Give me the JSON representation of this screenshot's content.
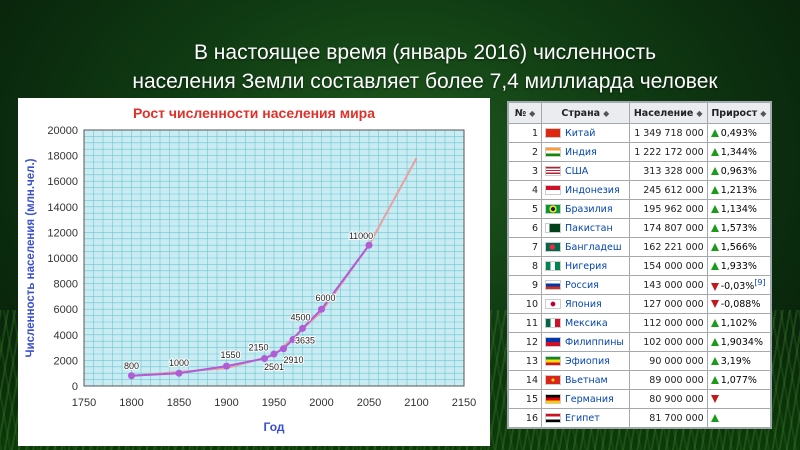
{
  "slide": {
    "title_line1": "В настоящее время (январь 2016) численность",
    "title_line2": "населения Земли составляет более 7,4 миллиарда человек"
  },
  "chart_data": {
    "type": "line",
    "title": "Рост численности населения мира",
    "xlabel": "Год",
    "ylabel": "Численность населения (млн.чел.)",
    "xlim": [
      1750,
      2150
    ],
    "ylim": [
      0,
      20000
    ],
    "x_ticks": [
      1750,
      1800,
      1850,
      1900,
      1950,
      2000,
      2050,
      2100,
      2150
    ],
    "y_ticks": [
      0,
      2000,
      4000,
      6000,
      8000,
      10000,
      12000,
      14000,
      16000,
      18000,
      20000
    ],
    "grid": true,
    "colors": {
      "title": "#e0302a",
      "axis_label": "#3a4fd1",
      "point": "#b05cd6",
      "line": "#b05cd6",
      "trend": "#e8a0a0",
      "plot_bg": "#c8ecf2",
      "grid": "#6fc5d6"
    },
    "series": [
      {
        "points": [
          {
            "x": 1800,
            "y": 800,
            "label": "800"
          },
          {
            "x": 1850,
            "y": 1000,
            "label": "1000"
          },
          {
            "x": 1900,
            "y": 1550,
            "label": "1550"
          },
          {
            "x": 1950,
            "y": 2501,
            "label": "2501"
          },
          {
            "x": 1940,
            "y": 2150,
            "label": "2150"
          },
          {
            "x": 1960,
            "y": 2910,
            "label": "2910"
          },
          {
            "x": 1970,
            "y": 3635,
            "label": "3635"
          },
          {
            "x": 1980,
            "y": 4500,
            "label": "4500"
          },
          {
            "x": 2000,
            "y": 6000,
            "label": "6000"
          },
          {
            "x": 2050,
            "y": 11000,
            "label": "11000"
          }
        ]
      }
    ],
    "trend_line": [
      [
        1800,
        800
      ],
      [
        1900,
        1400
      ],
      [
        1950,
        2400
      ],
      [
        2000,
        5800
      ],
      [
        2050,
        11000
      ],
      [
        2100,
        17800
      ]
    ]
  },
  "table": {
    "headers": [
      "№",
      "Страна",
      "Население",
      "Прирост"
    ],
    "rows": [
      {
        "n": "1",
        "country": "Китай",
        "pop": "1 349 718 000",
        "growth": "0,493%",
        "dir": "up",
        "flag": "cn"
      },
      {
        "n": "2",
        "country": "Индия",
        "pop": "1 222 172 000",
        "growth": "1,344%",
        "dir": "up",
        "flag": "in"
      },
      {
        "n": "3",
        "country": "США",
        "pop": "313 328 000",
        "growth": "0,963%",
        "dir": "up",
        "flag": "us"
      },
      {
        "n": "4",
        "country": "Индонезия",
        "pop": "245 612 000",
        "growth": "1,213%",
        "dir": "up",
        "flag": "id"
      },
      {
        "n": "5",
        "country": "Бразилия",
        "pop": "195 962 000",
        "growth": "1,134%",
        "dir": "up",
        "flag": "br"
      },
      {
        "n": "6",
        "country": "Пакистан",
        "pop": "174 807 000",
        "growth": "1,573%",
        "dir": "up",
        "flag": "pk"
      },
      {
        "n": "7",
        "country": "Бангладеш",
        "pop": "162 221 000",
        "growth": "1,566%",
        "dir": "up",
        "flag": "bd"
      },
      {
        "n": "8",
        "country": "Нигерия",
        "pop": "154 000 000",
        "growth": "1,933%",
        "dir": "up",
        "flag": "ng"
      },
      {
        "n": "9",
        "country": "Россия",
        "pop": "143 000 000",
        "growth": "-0,03%",
        "dir": "down",
        "flag": "ru",
        "ref": "[9]"
      },
      {
        "n": "10",
        "country": "Япония",
        "pop": "127 000 000",
        "growth": "-0,088%",
        "dir": "down",
        "flag": "jp"
      },
      {
        "n": "11",
        "country": "Мексика",
        "pop": "112 000 000",
        "growth": "1,102%",
        "dir": "up",
        "flag": "mx"
      },
      {
        "n": "12",
        "country": "Филиппины",
        "pop": "102 000 000",
        "growth": "1,9034%",
        "dir": "up",
        "flag": "ph"
      },
      {
        "n": "13",
        "country": "Эфиопия",
        "pop": "90 000 000",
        "growth": "3,19%",
        "dir": "up",
        "flag": "et"
      },
      {
        "n": "14",
        "country": "Вьетнам",
        "pop": "89 000 000",
        "growth": "1,077%",
        "dir": "up",
        "flag": "vn"
      },
      {
        "n": "15",
        "country": "Германия",
        "pop": "80 900 000",
        "growth": "",
        "dir": "down",
        "flag": "de"
      },
      {
        "n": "16",
        "country": "Египет",
        "pop": "81 700 000",
        "growth": "",
        "dir": "up",
        "flag": "eg"
      }
    ]
  }
}
